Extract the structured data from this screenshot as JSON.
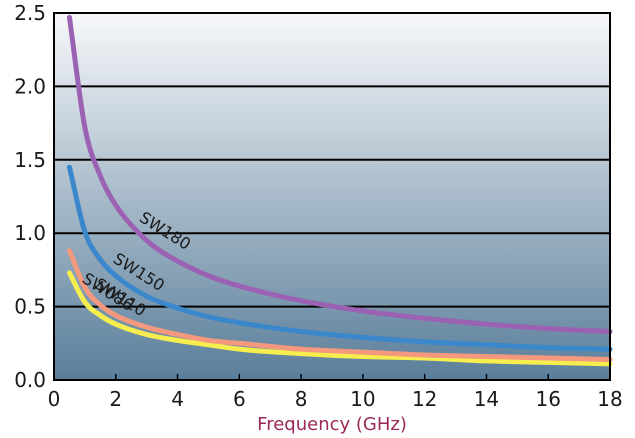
{
  "chart_data": {
    "type": "line",
    "title": "",
    "xlabel": "Frequency (GHz)",
    "ylabel": "",
    "xlim": [
      0,
      18
    ],
    "ylim": [
      0,
      2.5
    ],
    "x_ticks": [
      0,
      2,
      4,
      6,
      8,
      10,
      12,
      14,
      16,
      18
    ],
    "y_ticks": [
      "0.0",
      "0.5",
      "1.0",
      "1.5",
      "2.0",
      "2.5"
    ],
    "y_grid_values": [
      0.5,
      1.0,
      1.5,
      2.0
    ],
    "grid": {
      "horizontal": true,
      "vertical": false
    },
    "background_gradient": [
      "#f7f8fa",
      "#5a7e9a"
    ],
    "series": [
      {
        "name": "SW180",
        "color": "#9b62b3",
        "x": [
          0.5,
          1,
          1.5,
          2,
          3,
          4,
          5,
          6,
          8,
          10,
          12,
          14,
          16,
          18
        ],
        "values": [
          2.47,
          1.72,
          1.39,
          1.19,
          0.95,
          0.81,
          0.71,
          0.64,
          0.54,
          0.47,
          0.42,
          0.38,
          0.35,
          0.33
        ]
      },
      {
        "name": "SW150",
        "color": "#3b87cc",
        "x": [
          0.5,
          1,
          1.5,
          2,
          3,
          4,
          5,
          6,
          8,
          10,
          12,
          14,
          16,
          18
        ],
        "values": [
          1.45,
          1.01,
          0.82,
          0.71,
          0.57,
          0.49,
          0.43,
          0.39,
          0.33,
          0.29,
          0.26,
          0.24,
          0.22,
          0.21
        ]
      },
      {
        "name": "SW110",
        "color": "#f4987e",
        "x": [
          0.5,
          1,
          1.5,
          2,
          3,
          4,
          5,
          6,
          8,
          10,
          12,
          14,
          16,
          18
        ],
        "values": [
          0.88,
          0.63,
          0.51,
          0.44,
          0.36,
          0.31,
          0.27,
          0.25,
          0.21,
          0.19,
          0.17,
          0.16,
          0.15,
          0.14
        ]
      },
      {
        "name": "SW086",
        "color": "#f6ee4f",
        "x": [
          0.5,
          1,
          1.5,
          2,
          3,
          4,
          5,
          6,
          8,
          10,
          12,
          14,
          16,
          18
        ],
        "values": [
          0.73,
          0.53,
          0.44,
          0.38,
          0.31,
          0.27,
          0.24,
          0.21,
          0.18,
          0.16,
          0.15,
          0.13,
          0.12,
          0.11
        ]
      }
    ],
    "series_label_rotation": [
      32,
      32,
      32,
      32
    ]
  }
}
